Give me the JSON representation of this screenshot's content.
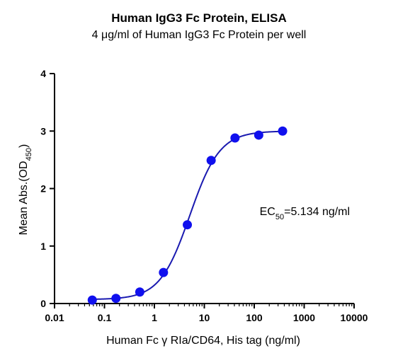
{
  "chart_data": {
    "type": "scatter",
    "title": "Human IgG3 Fc Protein, ELISA",
    "subtitle": "4 μg/ml of Human IgG3 Fc Protein per well",
    "xlabel": "Human Fc γ RIa/CD64, His tag (ng/ml)",
    "ylabel": {
      "main": "Mean Abs.(OD",
      "sub": "450",
      "end": ")"
    },
    "x_scale": "log",
    "xlim": [
      0.01,
      10000
    ],
    "ylim": [
      0,
      4
    ],
    "x_ticks": [
      0.01,
      0.1,
      1,
      10,
      100,
      1000,
      10000
    ],
    "x_tick_labels": [
      "0.01",
      "0.1",
      "1",
      "10",
      "100",
      "1000",
      "10000"
    ],
    "y_ticks": [
      0,
      1,
      2,
      3,
      4
    ],
    "y_tick_labels": [
      "0",
      "1",
      "2",
      "3",
      "4"
    ],
    "grid": false,
    "point_color": "#1010ee",
    "curve_color": "#1a1ab0",
    "series": [
      {
        "x": [
          0.057,
          0.17,
          0.51,
          1.52,
          4.57,
          13.7,
          41.2,
          123,
          370
        ],
        "y": [
          0.06,
          0.09,
          0.2,
          0.54,
          1.37,
          2.49,
          2.88,
          2.93,
          3.0
        ]
      }
    ],
    "fit_curve": {
      "bottom": 0.07,
      "top": 3.0,
      "ec50": 5.134,
      "hill": 1.45
    },
    "annotation": {
      "prefix": "EC",
      "sub": "50",
      "suffix": "=5.134 ng/ml",
      "x": 300,
      "y": 1.6
    }
  }
}
